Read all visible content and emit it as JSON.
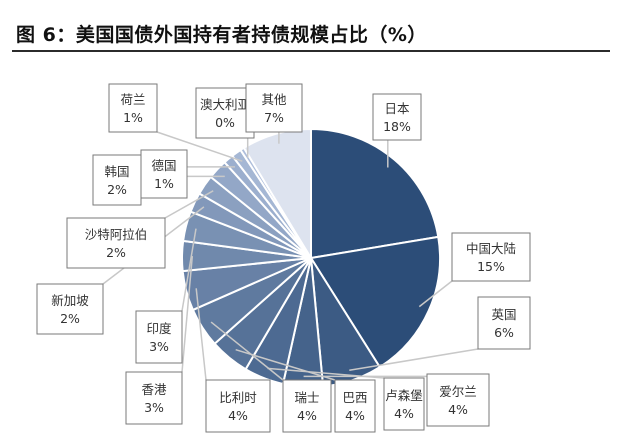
{
  "title": "图 6：美国国债外国持有者持债规模占比（%）",
  "chart_data": {
    "type": "pie",
    "slices": [
      {
        "name": "日本",
        "value": 18,
        "label": "18%"
      },
      {
        "name": "中国大陆",
        "value": 15,
        "label": "15%"
      },
      {
        "name": "英国",
        "value": 6,
        "label": "6%"
      },
      {
        "name": "爱尔兰",
        "value": 4,
        "label": "4%"
      },
      {
        "name": "卢森堡",
        "value": 4,
        "label": "4%"
      },
      {
        "name": "巴西",
        "value": 4,
        "label": "4%"
      },
      {
        "name": "瑞士",
        "value": 4,
        "label": "4%"
      },
      {
        "name": "比利时",
        "value": 4,
        "label": "4%"
      },
      {
        "name": "香港",
        "value": 3,
        "label": "3%"
      },
      {
        "name": "印度",
        "value": 3,
        "label": "3%"
      },
      {
        "name": "新加坡",
        "value": 2,
        "label": "2%"
      },
      {
        "name": "沙特阿拉伯",
        "value": 2,
        "label": "2%"
      },
      {
        "name": "韩国",
        "value": 2,
        "label": "2%"
      },
      {
        "name": "德国",
        "value": 1,
        "label": "1%"
      },
      {
        "name": "荷兰",
        "value": 1,
        "label": "1%"
      },
      {
        "name": "澳大利亚",
        "value": 0,
        "label": "0%"
      },
      {
        "name": "其他",
        "value": 7,
        "label": "7%"
      }
    ],
    "colors": {
      "dark": "#2c4d78",
      "light": "#bccbe6",
      "other": "#dde3ef",
      "border": "#7a7a7a"
    }
  }
}
